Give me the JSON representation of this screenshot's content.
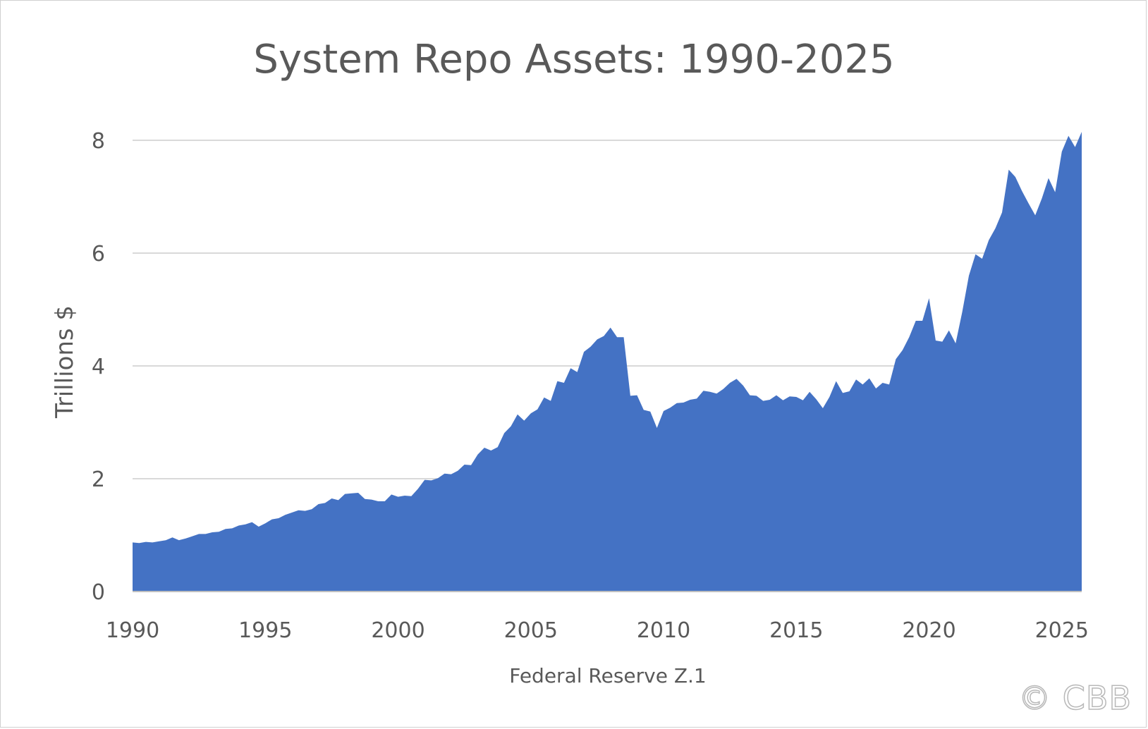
{
  "chart_data": {
    "type": "area",
    "title": "System Repo Assets: 1990-2025",
    "ylabel": "Trillions $",
    "xlabel": "Federal Reserve Z.1",
    "xlim": [
      1990,
      2025.75
    ],
    "ylim": [
      0,
      8
    ],
    "yticks": [
      0,
      2,
      4,
      6,
      8
    ],
    "xticks": [
      1990,
      1995,
      2000,
      2005,
      2010,
      2015,
      2020,
      2025
    ],
    "grid": "horizontal",
    "legend": "none",
    "colors": {
      "area": "#4472C4",
      "grid": "#d9d9d9",
      "axis": "#bfbfbf",
      "text": "#595959"
    },
    "series": [
      {
        "x": [
          1990.0,
          1990.25,
          1990.5,
          1990.75,
          1991.0,
          1991.25,
          1991.5,
          1991.75,
          1992.0,
          1992.25,
          1992.5,
          1992.75,
          1993.0,
          1993.25,
          1993.5,
          1993.75,
          1994.0,
          1994.25,
          1994.5,
          1994.75,
          1995.0,
          1995.25,
          1995.5,
          1995.75,
          1996.0,
          1996.25,
          1996.5,
          1996.75,
          1997.0,
          1997.25,
          1997.5,
          1997.75,
          1998.0,
          1998.25,
          1998.5,
          1998.75,
          1999.0,
          1999.25,
          1999.5,
          1999.75,
          2000.0,
          2000.25,
          2000.5,
          2000.75,
          2001.0,
          2001.25,
          2001.5,
          2001.75,
          2002.0,
          2002.25,
          2002.5,
          2002.75,
          2003.0,
          2003.25,
          2003.5,
          2003.75,
          2004.0,
          2004.25,
          2004.5,
          2004.75,
          2005.0,
          2005.25,
          2005.5,
          2005.75,
          2006.0,
          2006.25,
          2006.5,
          2006.75,
          2007.0,
          2007.25,
          2007.5,
          2007.75,
          2008.0,
          2008.25,
          2008.5,
          2008.75,
          2009.0,
          2009.25,
          2009.5,
          2009.75,
          2010.0,
          2010.25,
          2010.5,
          2010.75,
          2011.0,
          2011.25,
          2011.5,
          2011.75,
          2012.0,
          2012.25,
          2012.5,
          2012.75,
          2013.0,
          2013.25,
          2013.5,
          2013.75,
          2014.0,
          2014.25,
          2014.5,
          2014.75,
          2015.0,
          2015.25,
          2015.5,
          2015.75,
          2016.0,
          2016.25,
          2016.5,
          2016.75,
          2017.0,
          2017.25,
          2017.5,
          2017.75,
          2018.0,
          2018.25,
          2018.5,
          2018.75,
          2019.0,
          2019.25,
          2019.5,
          2019.75,
          2020.0,
          2020.25,
          2020.5,
          2020.75,
          2021.0,
          2021.25,
          2021.5,
          2021.75,
          2022.0,
          2022.25,
          2022.5,
          2022.75,
          2023.0,
          2023.25,
          2023.5,
          2023.75,
          2024.0,
          2024.25,
          2024.5,
          2024.75,
          2025.0,
          2025.25,
          2025.5,
          2025.75
        ],
        "values": [
          0.87,
          0.86,
          0.88,
          0.87,
          0.89,
          0.91,
          0.96,
          0.91,
          0.94,
          0.98,
          1.02,
          1.02,
          1.05,
          1.06,
          1.11,
          1.12,
          1.17,
          1.19,
          1.23,
          1.15,
          1.21,
          1.28,
          1.3,
          1.36,
          1.4,
          1.44,
          1.43,
          1.46,
          1.55,
          1.57,
          1.65,
          1.62,
          1.73,
          1.74,
          1.75,
          1.64,
          1.63,
          1.6,
          1.6,
          1.72,
          1.68,
          1.7,
          1.69,
          1.82,
          1.98,
          1.97,
          2.01,
          2.09,
          2.08,
          2.14,
          2.25,
          2.24,
          2.43,
          2.55,
          2.5,
          2.56,
          2.81,
          2.93,
          3.14,
          3.03,
          3.16,
          3.23,
          3.44,
          3.38,
          3.73,
          3.7,
          3.96,
          3.89,
          4.25,
          4.34,
          4.47,
          4.53,
          4.68,
          4.51,
          4.51,
          3.47,
          3.48,
          3.22,
          3.19,
          2.9,
          3.2,
          3.26,
          3.34,
          3.35,
          3.4,
          3.42,
          3.56,
          3.54,
          3.51,
          3.59,
          3.7,
          3.77,
          3.65,
          3.48,
          3.47,
          3.38,
          3.4,
          3.48,
          3.39,
          3.46,
          3.45,
          3.39,
          3.54,
          3.41,
          3.25,
          3.45,
          3.73,
          3.52,
          3.55,
          3.76,
          3.67,
          3.78,
          3.6,
          3.7,
          3.67,
          4.12,
          4.28,
          4.51,
          4.8,
          4.8,
          5.2,
          4.45,
          4.43,
          4.63,
          4.4,
          4.96,
          5.6,
          5.98,
          5.9,
          6.23,
          6.44,
          6.72,
          7.48,
          7.35,
          7.1,
          6.88,
          6.67,
          6.97,
          7.33,
          7.08,
          7.8,
          8.08,
          7.88,
          8.15
        ]
      }
    ]
  },
  "watermark": "© CBB"
}
